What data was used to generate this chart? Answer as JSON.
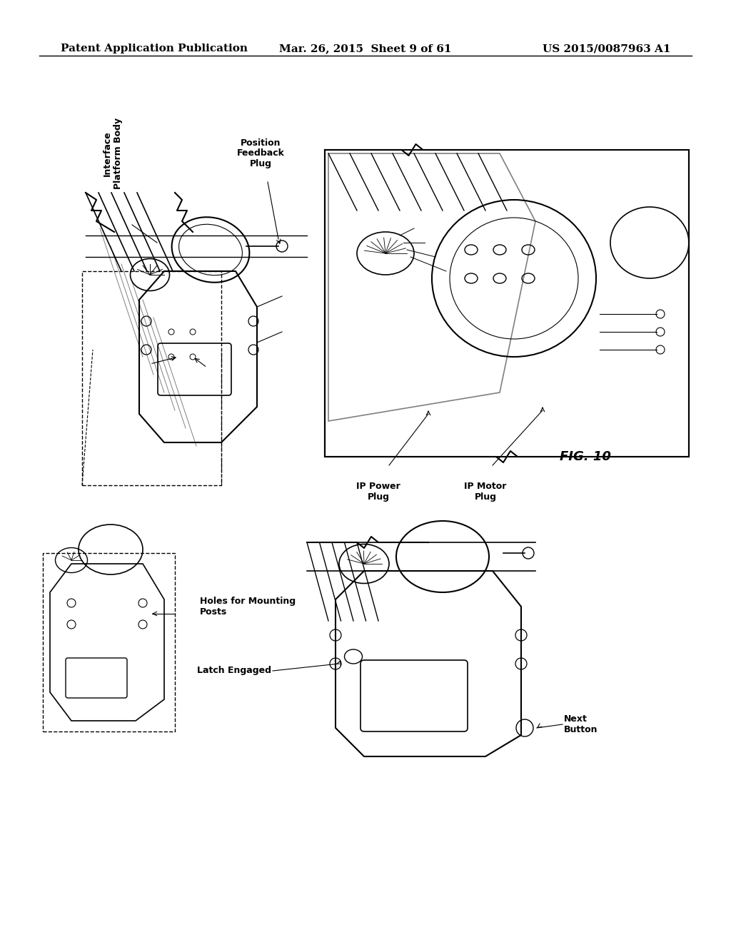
{
  "bg_color": "#ffffff",
  "header_left": "Patent Application Publication",
  "header_center": "Mar. 26, 2015  Sheet 9 of 61",
  "header_right": "US 2015/0087963 A1",
  "fig_label": "FIG. 10",
  "labels": {
    "interface_platform_body": "Interface\nPlatform Body",
    "position_feedback_plug": "Position\nFeedback\nPlug",
    "ip_power_plug": "IP Power\nPlug",
    "ip_motor_plug": "IP Motor\nPlug",
    "holes_for_mounting_posts": "Holes for Mounting\nPosts",
    "latch_engaged": "Latch Engaged",
    "next_button": "Next\nButton"
  },
  "font_size_header": 11,
  "font_size_labels": 9,
  "font_size_fig": 11
}
